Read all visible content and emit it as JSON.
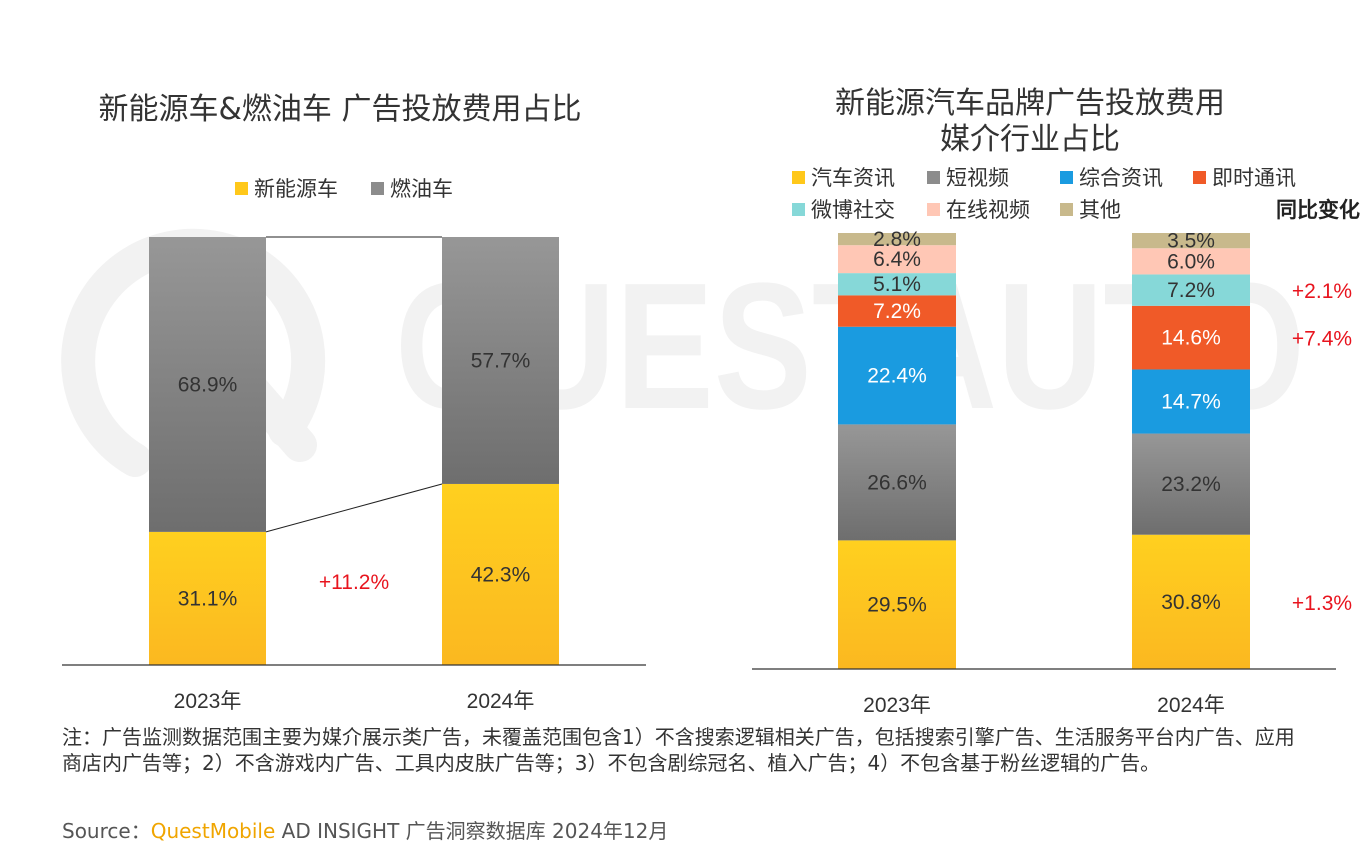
{
  "colors": {
    "nev": "#ffc81a",
    "fuel": "#8c8c8c",
    "auto_news": "#ffc81a",
    "short_video": "#8c8c8c",
    "general_news": "#1a9be0",
    "im": "#f05a28",
    "weibo": "#86d8d8",
    "online_video": "#ffc7b5",
    "others": "#c8b98c",
    "positive_change": "#e8141e"
  },
  "watermark": {
    "text": "QUESTAUTO"
  },
  "chart_data": [
    {
      "type": "bar",
      "stacked": true,
      "title": "新能源车&燃油车 广告投放费用占比",
      "categories": [
        "2023年",
        "2024年"
      ],
      "series": [
        {
          "name": "新能源车",
          "values": [
            31.1,
            42.3
          ],
          "labels": [
            "31.1%",
            "42.3%"
          ],
          "color": "#ffc81a"
        },
        {
          "name": "燃油车",
          "values": [
            68.9,
            57.7
          ],
          "labels": [
            "68.9%",
            "57.7%"
          ],
          "color": "#8c8c8c"
        }
      ],
      "annotations": [
        {
          "text": "+11.2%",
          "series": "新能源车"
        }
      ],
      "ylim": [
        0,
        100
      ],
      "xlabel": "",
      "ylabel": ""
    },
    {
      "type": "bar",
      "stacked": true,
      "title": "新能源汽车品牌广告投放费用\n媒介行业占比",
      "title_lines": [
        "新能源汽车品牌广告投放费用",
        "媒介行业占比"
      ],
      "categories": [
        "2023年",
        "2024年"
      ],
      "series": [
        {
          "name": "汽车资讯",
          "values": [
            29.5,
            30.8
          ],
          "labels": [
            "29.5%",
            "30.8%"
          ],
          "color": "#ffc81a"
        },
        {
          "name": "短视频",
          "values": [
            26.6,
            23.2
          ],
          "labels": [
            "26.6%",
            "23.2%"
          ],
          "color": "#8c8c8c"
        },
        {
          "name": "综合资讯",
          "values": [
            22.4,
            14.7
          ],
          "labels": [
            "22.4%",
            "14.7%"
          ],
          "color": "#1a9be0"
        },
        {
          "name": "即时通讯",
          "values": [
            7.2,
            14.6
          ],
          "labels": [
            "7.2%",
            "14.6%"
          ],
          "color": "#f05a28"
        },
        {
          "name": "微博社交",
          "values": [
            5.1,
            7.2
          ],
          "labels": [
            "5.1%",
            "7.2%"
          ],
          "color": "#86d8d8"
        },
        {
          "name": "在线视频",
          "values": [
            6.4,
            6.0
          ],
          "labels": [
            "6.4%",
            "6.0%"
          ],
          "color": "#ffc7b5"
        },
        {
          "name": "其他",
          "values": [
            2.8,
            3.5
          ],
          "labels": [
            "2.8%",
            "3.5%"
          ],
          "color": "#c8b98c"
        }
      ],
      "yoy_title": "同比变化",
      "yoy_changes": [
        {
          "series": "汽车资讯",
          "text": "+1.3%"
        },
        {
          "series": "即时通讯",
          "text": "+7.4%"
        },
        {
          "series": "微博社交",
          "text": "+2.1%"
        }
      ],
      "ylim": [
        0,
        100
      ],
      "xlabel": "",
      "ylabel": ""
    }
  ],
  "footnote": "注：广告监测数据范围主要为媒介展示类广告，未覆盖范围包含1）不含搜索逻辑相关广告，包括搜索引擎广告、生活服务平台内广告、应用商店内广告等；2）不含游戏内广告、工具内皮肤广告等；3）不包含剧综冠名、植入广告；4）不包含基于粉丝逻辑的广告。",
  "source": {
    "label": "Source：",
    "brand": "QuestMobile",
    "rest": " AD INSIGHT 广告洞察数据库 2024年12月"
  }
}
